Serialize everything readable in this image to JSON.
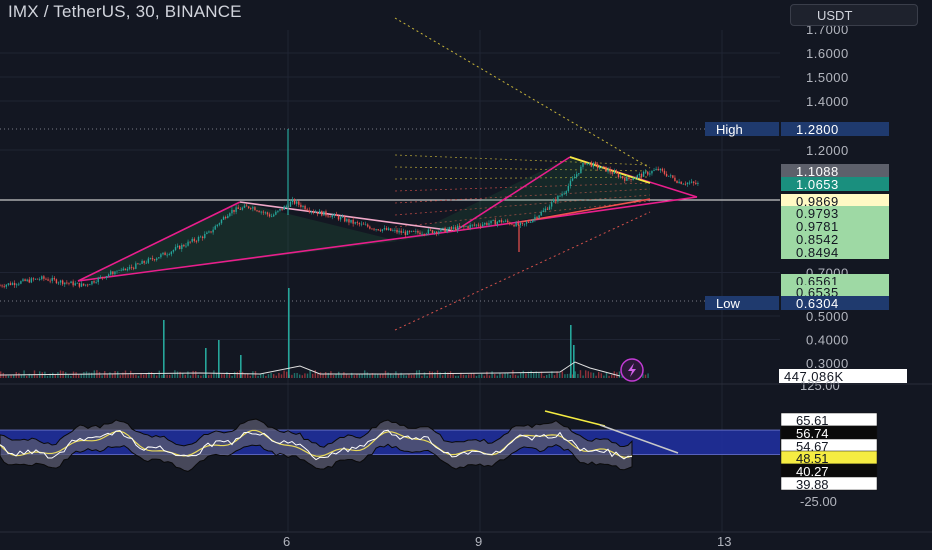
{
  "header": {
    "symbol_title": "IMX / TetherUS, 30, BINANCE",
    "currency_button": "USDT"
  },
  "colors": {
    "background": "#131722",
    "bull": "#26a69a",
    "bear": "#ef5350",
    "pattern_magenta": "#e91e8c",
    "pattern_yellow": "#f5ec42",
    "rsi_band": "#2130a3"
  },
  "chart_data": [
    {
      "type": "candlestick",
      "title": "",
      "price_axis": {
        "ticks": [
          "1.7000",
          "1.6000",
          "1.5000",
          "1.4000",
          "1.2000",
          "0.7000",
          "0.5000",
          "0.4000",
          "0.3000"
        ],
        "ticks_values": [
          1.7,
          1.6,
          1.5,
          1.4,
          1.2,
          0.7,
          0.5,
          0.4,
          0.3
        ]
      },
      "time_axis": {
        "ticks": [
          "6",
          "9",
          "13"
        ]
      },
      "price_labels": [
        {
          "text": "1.2800",
          "tag": "High",
          "kind": "high"
        },
        {
          "text": "1.1088",
          "tag": "",
          "kind": "gray"
        },
        {
          "text": "1.0653",
          "tag": "",
          "kind": "last"
        },
        {
          "text": "0.9869",
          "tag": "",
          "kind": "pale"
        },
        {
          "text": "0.9793",
          "tag": "",
          "kind": "green"
        },
        {
          "text": "0.9781",
          "tag": "",
          "kind": "green"
        },
        {
          "text": "0.8542",
          "tag": "",
          "kind": "green"
        },
        {
          "text": "0.8494",
          "tag": "",
          "kind": "green"
        },
        {
          "text": "0.6561",
          "tag": "",
          "kind": "green"
        },
        {
          "text": "0.6535",
          "tag": "",
          "kind": "green"
        },
        {
          "text": "0.6304",
          "tag": "Low",
          "kind": "low"
        }
      ],
      "price_path": [
        [
          0,
          0.63
        ],
        [
          8,
          0.66
        ],
        [
          16,
          0.63
        ],
        [
          24,
          0.71
        ],
        [
          32,
          0.78
        ],
        [
          40,
          0.86
        ],
        [
          44,
          0.95
        ],
        [
          48,
          0.97
        ],
        [
          52,
          0.93
        ],
        [
          56,
          0.99
        ],
        [
          60,
          0.95
        ],
        [
          64,
          0.93
        ],
        [
          68,
          0.9
        ],
        [
          72,
          0.88
        ],
        [
          78,
          0.86
        ],
        [
          84,
          0.87
        ],
        [
          90,
          0.89
        ],
        [
          96,
          0.91
        ],
        [
          100,
          0.89
        ],
        [
          104,
          0.95
        ],
        [
          108,
          1.03
        ],
        [
          112,
          1.15
        ],
        [
          116,
          1.12
        ],
        [
          120,
          1.08
        ],
        [
          126,
          1.12
        ],
        [
          130,
          1.07
        ],
        [
          134,
          1.06
        ]
      ],
      "volume": {
        "value_label": "447.086K",
        "spikes": [
          [
            35,
            0.2
          ],
          [
            50,
            0.95
          ],
          [
            40,
            0.25
          ],
          [
            80,
            0.1
          ],
          [
            116,
            0.6
          ],
          [
            117,
            0.35
          ]
        ]
      }
    },
    {
      "type": "line",
      "title": "",
      "axis_ticks": [
        "125.00",
        "-25.00"
      ],
      "value_labels": [
        {
          "text": "65.61",
          "kind": "white"
        },
        {
          "text": "56.74",
          "kind": "black"
        },
        {
          "text": "54.67",
          "kind": "white"
        },
        {
          "text": "48.51",
          "kind": "yellow"
        },
        {
          "text": "40.27",
          "kind": "black"
        },
        {
          "text": "39.88",
          "kind": "white"
        }
      ],
      "band": [
        40.27,
        56.74
      ],
      "ylim": [
        -25,
        125
      ]
    }
  ]
}
